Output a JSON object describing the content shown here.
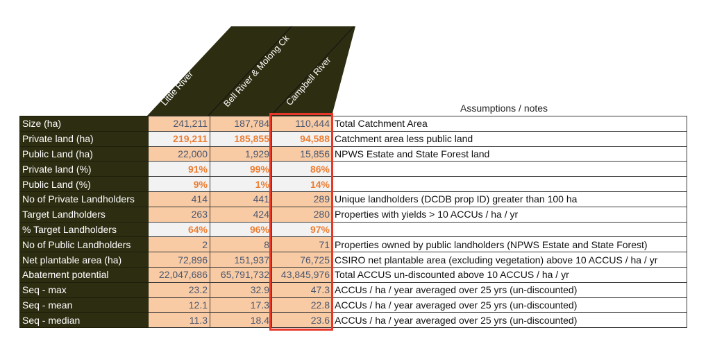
{
  "columns": [
    "Little River",
    "Bell River & Molong Ck",
    "Campbell River"
  ],
  "notes_header": "Assumptions / notes",
  "colors": {
    "header_bg": "#2d2d12",
    "peach": "#f8cba4",
    "gray": "#f2f2f2",
    "orange": "#ed7d31",
    "highlight": "#e8382a"
  },
  "rows": [
    {
      "label": "Size (ha)",
      "values": [
        "241,211",
        "187,784",
        "110,444"
      ],
      "style": "peach",
      "note": "Total Catchment Area"
    },
    {
      "label": "Private land (ha)",
      "values": [
        "219,211",
        "185,855",
        "94,588"
      ],
      "style": "gray",
      "note": "Catchment area less public land"
    },
    {
      "label": "Public Land (ha)",
      "values": [
        "22,000",
        "1,929",
        "15,856"
      ],
      "style": "peach",
      "note": "NPWS Estate and State Forest land"
    },
    {
      "label": "Private land (%)",
      "values": [
        "91%",
        "99%",
        "86%"
      ],
      "style": "gray",
      "note": ""
    },
    {
      "label": "Public Land (%)",
      "values": [
        "9%",
        "1%",
        "14%"
      ],
      "style": "gray",
      "note": ""
    },
    {
      "label": "No of Private Landholders",
      "values": [
        "414",
        "441",
        "289"
      ],
      "style": "peach",
      "note": "Unique landholders (DCDB prop ID) greater than 100 ha"
    },
    {
      "label": "Target Landholders",
      "values": [
        "263",
        "424",
        "280"
      ],
      "style": "peach",
      "note": "Properties with yields > 10 ACCUs / ha / yr"
    },
    {
      "label": "% Target Landholders",
      "values": [
        "64%",
        "96%",
        "97%"
      ],
      "style": "gray",
      "note": ""
    },
    {
      "label": "No of Public Landholders",
      "values": [
        "2",
        "8",
        "71"
      ],
      "style": "peach",
      "note": "Properties owned by public landholders (NPWS Estate and State Forest)"
    },
    {
      "label": "Net plantable area (ha)",
      "values": [
        "72,896",
        "151,937",
        "76,725"
      ],
      "style": "peach",
      "note": "CSIRO net plantable area (excluding vegetation) above 10 ACCUS / ha / yr"
    },
    {
      "label": "Abatement potential",
      "values": [
        "22,047,686",
        "65,791,732",
        "43,845,976"
      ],
      "style": "peach",
      "note": "Total ACCUS un-discounted above 10 ACCUS / ha / yr"
    },
    {
      "label": "Seq - max",
      "values": [
        "23.2",
        "32.9",
        "47.3"
      ],
      "style": "peach",
      "note": "ACCUs / ha / year averaged over 25 yrs (un-discounted)"
    },
    {
      "label": "Seq - mean",
      "values": [
        "12.1",
        "17.3",
        "22.8"
      ],
      "style": "peach",
      "note": "ACCUs / ha / year averaged over 25 yrs (un-discounted)"
    },
    {
      "label": "Seq - median",
      "values": [
        "11.3",
        "18.4",
        "23.6"
      ],
      "style": "peach",
      "note": "ACCUs / ha / year averaged over 25 yrs (un-discounted)"
    }
  ]
}
